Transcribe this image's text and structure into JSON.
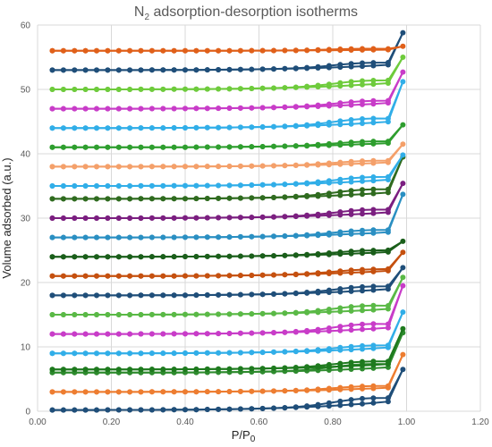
{
  "chart_data": {
    "type": "line",
    "title_parts": [
      "N",
      "2",
      " adsorption-desorption isotherms"
    ],
    "xlabel_parts": [
      "P/P",
      "0"
    ],
    "ylabel": "Volume  adsorbed (a.u.)",
    "xlim": [
      0,
      1.2
    ],
    "ylim": [
      0,
      60
    ],
    "x_ticks": [
      "0.00",
      "0.20",
      "0.40",
      "0.60",
      "0.80",
      "1.00",
      "1.20"
    ],
    "y_ticks": [
      "0",
      "10",
      "20",
      "30",
      "40",
      "50",
      "60"
    ],
    "grid": true,
    "marker": "circle",
    "x": [
      0.04,
      0.07,
      0.1,
      0.13,
      0.16,
      0.19,
      0.22,
      0.25,
      0.28,
      0.31,
      0.34,
      0.37,
      0.4,
      0.43,
      0.46,
      0.49,
      0.52,
      0.55,
      0.58,
      0.61,
      0.64,
      0.67,
      0.7,
      0.73,
      0.76,
      0.79,
      0.82,
      0.85,
      0.88,
      0.91,
      0.95,
      0.99
    ],
    "series": [
      {
        "color": "#1f4e79",
        "base": 0.2,
        "rise": 1.6,
        "top": 6.5,
        "gap": 0.8
      },
      {
        "color": "#ed7d31",
        "base": 3.0,
        "rise": 0.8,
        "top": 8.8,
        "gap": 0.4
      },
      {
        "color": "#2e8b2e",
        "base": 6.0,
        "rise": 1.0,
        "top": 12.2,
        "gap": 0.7
      },
      {
        "color": "#1e7a1e",
        "base": 6.5,
        "rise": 1.0,
        "top": 12.8,
        "gap": 0.6
      },
      {
        "color": "#31aee8",
        "base": 9.0,
        "rise": 1.1,
        "top": 15.4,
        "gap": 0.5
      },
      {
        "color": "#c83cc8",
        "base": 12.0,
        "rise": 1.2,
        "top": 19.5,
        "gap": 0.8
      },
      {
        "color": "#5ab946",
        "base": 15.0,
        "rise": 1.1,
        "top": 20.8,
        "gap": 0.7
      },
      {
        "color": "#1f4e79",
        "base": 18.0,
        "rise": 1.2,
        "top": 22.3,
        "gap": 0.6
      },
      {
        "color": "#c5500f",
        "base": 21.0,
        "rise": 1.0,
        "top": 24.7,
        "gap": 0.4
      },
      {
        "color": "#1a5e1a",
        "base": 24.0,
        "rise": 0.9,
        "top": 26.4,
        "gap": 0.4
      },
      {
        "color": "#2a8fc2",
        "base": 27.0,
        "rise": 1.0,
        "top": 33.7,
        "gap": 0.5
      },
      {
        "color": "#7b1f80",
        "base": 30.0,
        "rise": 1.1,
        "top": 35.4,
        "gap": 0.6
      },
      {
        "color": "#2f6b1f",
        "base": 33.0,
        "rise": 1.2,
        "top": 39.5,
        "gap": 0.7
      },
      {
        "color": "#31aee8",
        "base": 35.0,
        "rise": 1.2,
        "top": 39.8,
        "gap": 0.6
      },
      {
        "color": "#f4a06a",
        "base": 38.0,
        "rise": 0.8,
        "top": 41.5,
        "gap": 0.4
      },
      {
        "color": "#2e9e2e",
        "base": 41.0,
        "rise": 0.8,
        "top": 44.5,
        "gap": 0.4
      },
      {
        "color": "#31aee8",
        "base": 44.0,
        "rise": 1.2,
        "top": 51.2,
        "gap": 0.7
      },
      {
        "color": "#c83cc8",
        "base": 47.0,
        "rise": 1.1,
        "top": 52.7,
        "gap": 0.5
      },
      {
        "color": "#6ecb3c",
        "base": 50.0,
        "rise": 1.2,
        "top": 55.0,
        "gap": 0.6
      },
      {
        "color": "#1f4e79",
        "base": 53.0,
        "rise": 1.0,
        "top": 58.8,
        "gap": 0.5
      },
      {
        "color": "#e0601a",
        "base": 56.0,
        "rise": 0.2,
        "top": 56.7,
        "gap": 0.2
      }
    ]
  }
}
